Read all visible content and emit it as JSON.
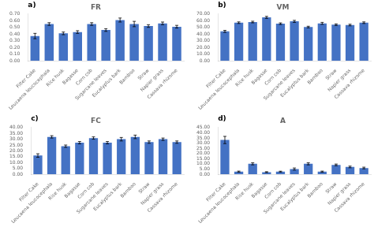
{
  "chart_data": [
    {
      "type": "bar",
      "title": "FR",
      "annotation": "a)",
      "categories": [
        "Filter Cake",
        "Leucaena leucocephala",
        "Rice husk",
        "Bagasse",
        "Corn cob",
        "Sugarcane leaves",
        "Eucalyptus bark",
        "Bamboo",
        "Straw",
        "Napier grass",
        "Cassava rhizome"
      ],
      "values": [
        0.37,
        0.55,
        0.41,
        0.43,
        0.55,
        0.46,
        0.61,
        0.55,
        0.52,
        0.56,
        0.51
      ],
      "errors": [
        0.04,
        0.02,
        0.02,
        0.02,
        0.02,
        0.02,
        0.03,
        0.04,
        0.02,
        0.02,
        0.02
      ],
      "color": "#4472C4",
      "ylim": [
        0.0,
        0.7
      ],
      "yticks": [
        {
          "value": 0.0,
          "label": "0.00"
        },
        {
          "value": 0.1,
          "label": "0.10"
        },
        {
          "value": 0.2,
          "label": "0.20"
        },
        {
          "value": 0.3,
          "label": "0.30"
        },
        {
          "value": 0.4,
          "label": "0.40"
        },
        {
          "value": 0.5,
          "label": "0.50"
        },
        {
          "value": 0.6,
          "label": "0.60"
        },
        {
          "value": 0.7,
          "label": "0.70"
        }
      ],
      "grid": false
    },
    {
      "type": "bar",
      "title": "VM",
      "annotation": "b)",
      "categories": [
        "Filter Cake",
        "Leucaena leucocephala",
        "Rice husk",
        "Bagasse",
        "Corn cob",
        "Sugarcane leaves",
        "Eucalyptus bark",
        "Bamboo",
        "Straw",
        "Napier grass",
        "Cassava rhizome"
      ],
      "values": [
        44.0,
        57.0,
        58.0,
        65.0,
        55.5,
        59.0,
        50.5,
        56.0,
        54.0,
        53.5,
        57.0
      ],
      "errors": [
        1.5,
        1.2,
        1.2,
        1.5,
        1.2,
        1.5,
        1.2,
        1.5,
        1.2,
        1.2,
        1.2
      ],
      "color": "#4472C4",
      "ylim": [
        0.0,
        70.0
      ],
      "yticks": [
        {
          "value": 0,
          "label": "0.00"
        },
        {
          "value": 10,
          "label": "10.00"
        },
        {
          "value": 20,
          "label": "20.00"
        },
        {
          "value": 30,
          "label": "30.00"
        },
        {
          "value": 40,
          "label": "40.00"
        },
        {
          "value": 50,
          "label": "50.00"
        },
        {
          "value": 60,
          "label": "60.00"
        },
        {
          "value": 70,
          "label": "70.00"
        }
      ],
      "grid": false
    },
    {
      "type": "bar",
      "title": "FC",
      "annotation": "c)",
      "categories": [
        "Filter Cake",
        "Leucaena leucocephala",
        "Rice husk",
        "Bagasse",
        "Corn cob",
        "Sugarcane leaves",
        "Eucalyptus bark",
        "Bamboo",
        "Straw",
        "Napier grass",
        "Cassava rhizome"
      ],
      "values": [
        16.0,
        32.0,
        24.0,
        27.0,
        31.0,
        27.0,
        30.0,
        32.0,
        27.5,
        30.0,
        27.5
      ],
      "errors": [
        1.5,
        1.0,
        1.0,
        1.0,
        1.0,
        1.0,
        1.5,
        1.5,
        1.0,
        1.0,
        1.0
      ],
      "color": "#4472C4",
      "ylim": [
        0.0,
        40.0
      ],
      "yticks": [
        {
          "value": 0,
          "label": "0.00"
        },
        {
          "value": 5,
          "label": "5.00"
        },
        {
          "value": 10,
          "label": "10.00"
        },
        {
          "value": 15,
          "label": "15.00"
        },
        {
          "value": 20,
          "label": "20.00"
        },
        {
          "value": 25,
          "label": "25.00"
        },
        {
          "value": 30,
          "label": "30.00"
        },
        {
          "value": 35,
          "label": "35.00"
        },
        {
          "value": 40,
          "label": "40.00"
        }
      ],
      "grid": false
    },
    {
      "type": "bar",
      "title": "A",
      "annotation": "d)",
      "categories": [
        "Filter Cake",
        "Leucaena leucocephala",
        "Rice husk",
        "Bagasse",
        "Corn cob",
        "Sugarcane leaves",
        "Eucalyptus bark",
        "Bamboo",
        "Straw",
        "Napier grass",
        "Cassava rhizome"
      ],
      "values": [
        33.0,
        2.5,
        10.0,
        2.0,
        2.5,
        5.0,
        10.0,
        2.5,
        9.0,
        7.0,
        6.0
      ],
      "errors": [
        3.5,
        0.5,
        1.0,
        0.4,
        0.4,
        1.0,
        1.0,
        0.5,
        0.8,
        0.8,
        0.8
      ],
      "color": "#4472C4",
      "ylim": [
        0.0,
        45.0
      ],
      "yticks": [
        {
          "value": 0,
          "label": "0.00"
        },
        {
          "value": 5,
          "label": "5.00"
        },
        {
          "value": 10,
          "label": "10.00"
        },
        {
          "value": 15,
          "label": "15.00"
        },
        {
          "value": 20,
          "label": "20.00"
        },
        {
          "value": 25,
          "label": "25.00"
        },
        {
          "value": 30,
          "label": "30.00"
        },
        {
          "value": 35,
          "label": "35.00"
        },
        {
          "value": 40,
          "label": "40.00"
        },
        {
          "value": 45,
          "label": "45.00"
        }
      ],
      "grid": false
    }
  ]
}
